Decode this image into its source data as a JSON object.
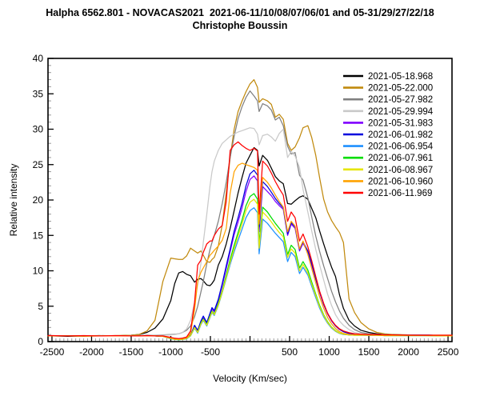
{
  "header": {
    "title": "Halpha 6562.801 - NOVACAS2021  2021-06-11/10/08/07/06/01 and 05-31/29/27/22/18",
    "subtitle": "Christophe Boussin"
  },
  "chart_data": {
    "type": "line",
    "title": "Halpha 6562.801 - NOVACAS2021 2021-06-11/10/08/07/06/01 and 05-31/29/27/22/18",
    "xlabel": "Velocity (Km/sec)",
    "ylabel": "Relative intensity",
    "xlim": [
      -2550,
      2550
    ],
    "ylim": [
      0,
      40
    ],
    "x_major_ticks": [
      -2500,
      -2000,
      -1500,
      -1000,
      -500,
      0,
      500,
      1000,
      1500,
      2000,
      2500
    ],
    "x_unlabeled_ticks": [
      0
    ],
    "x_minor_step": 50,
    "y_major_ticks": [
      0,
      5,
      10,
      15,
      20,
      25,
      30,
      35,
      40
    ],
    "y_minor_step": 1,
    "grid": false,
    "legend_position": "top-right",
    "background_color": "#ffffff",
    "axis_color": "#000000",
    "minor_tick_color": "#9b9b9b",
    "velocities": [
      -2500,
      -2300,
      -2100,
      -1900,
      -1700,
      -1500,
      -1400,
      -1300,
      -1200,
      -1100,
      -1000,
      -950,
      -900,
      -850,
      -800,
      -750,
      -700,
      -660,
      -620,
      -590,
      -545,
      -505,
      -480,
      -450,
      -400,
      -350,
      -300,
      -250,
      -200,
      -150,
      -100,
      -50,
      0,
      50,
      95,
      115,
      160,
      220,
      270,
      320,
      370,
      420,
      475,
      520,
      570,
      625,
      670,
      730,
      780,
      830,
      880,
      930,
      980,
      1030,
      1080,
      1130,
      1180,
      1250,
      1320,
      1400,
      1500,
      1600,
      1700,
      1800,
      2000,
      2250,
      2500
    ],
    "series": [
      {
        "name": "2021-05-18.968",
        "color": "#000000",
        "values": [
          0.8,
          0.75,
          0.8,
          0.85,
          0.8,
          0.9,
          1.0,
          1.3,
          1.9,
          3.2,
          5.8,
          8.2,
          9.7,
          9.9,
          9.5,
          9.3,
          8.4,
          8.8,
          8.9,
          8.6,
          8.0,
          7.9,
          8.2,
          8.7,
          10.8,
          12.0,
          13.8,
          16.0,
          18.5,
          21.0,
          23.2,
          25.2,
          26.3,
          27.4,
          27.0,
          24.8,
          26.3,
          25.6,
          24.5,
          23.3,
          22.7,
          22.3,
          19.5,
          19.4,
          19.9,
          20.4,
          20.6,
          20.1,
          18.8,
          17.5,
          15.6,
          13.8,
          12.1,
          10.5,
          9.2,
          6.6,
          4.7,
          3.0,
          2.2,
          1.6,
          1.3,
          1.1,
          1.0,
          1.0,
          0.9,
          0.9,
          0.85
        ]
      },
      {
        "name": "2021-05-22.000",
        "color": "#c18a0e",
        "values": [
          0.8,
          0.8,
          0.75,
          0.8,
          0.85,
          0.9,
          1.0,
          1.5,
          3.0,
          8.5,
          11.8,
          11.7,
          11.6,
          11.6,
          12.1,
          13.2,
          12.8,
          12.5,
          12.8,
          12.2,
          11.3,
          11.2,
          11.6,
          11.9,
          13.5,
          16.5,
          21.0,
          26.0,
          30.0,
          32.5,
          34.0,
          35.3,
          36.4,
          37.0,
          35.9,
          33.8,
          34.3,
          34.0,
          33.5,
          31.7,
          32.1,
          31.4,
          28.0,
          27.0,
          27.5,
          28.8,
          30.2,
          30.5,
          28.8,
          26.3,
          23.1,
          20.1,
          18.3,
          17.1,
          16.2,
          15.4,
          14.0,
          6.0,
          4.1,
          2.7,
          1.8,
          1.3,
          1.1,
          1.0,
          0.95,
          0.9,
          0.9
        ]
      },
      {
        "name": "2021-05-27.982",
        "color": "#808080",
        "values": [
          0.8,
          0.8,
          0.8,
          0.8,
          0.8,
          0.85,
          0.85,
          0.9,
          0.9,
          0.95,
          1.0,
          1.05,
          1.1,
          1.3,
          1.6,
          2.2,
          3.5,
          5.0,
          7.0,
          8.5,
          11.0,
          13.0,
          14.0,
          15.0,
          17.0,
          19.5,
          22.5,
          26.0,
          29.0,
          31.5,
          33.2,
          34.5,
          35.4,
          34.7,
          34.0,
          32.5,
          33.6,
          33.3,
          32.7,
          31.3,
          31.7,
          30.5,
          27.6,
          26.5,
          26.7,
          23.5,
          22.8,
          20.3,
          17.6,
          14.9,
          12.7,
          10.7,
          8.9,
          7.1,
          5.6,
          4.3,
          3.3,
          2.3,
          1.7,
          1.3,
          1.1,
          1.0,
          1.0,
          0.95,
          0.9,
          0.9,
          0.85
        ]
      },
      {
        "name": "2021-05-29.994",
        "color": "#c9c9c9",
        "values": [
          0.85,
          0.8,
          0.8,
          0.8,
          0.8,
          0.85,
          0.85,
          0.85,
          0.9,
          0.9,
          0.95,
          1.0,
          1.1,
          1.3,
          1.8,
          3.0,
          5.5,
          8.0,
          11.0,
          14.0,
          18.0,
          22.0,
          24.0,
          25.5,
          27.0,
          28.0,
          28.5,
          29.0,
          29.3,
          29.6,
          29.8,
          30.0,
          30.2,
          30.1,
          29.3,
          27.8,
          29.1,
          29.3,
          28.9,
          28.3,
          29.4,
          30.0,
          26.0,
          26.9,
          26.2,
          24.6,
          21.5,
          18.3,
          15.6,
          13.0,
          10.8,
          8.7,
          6.7,
          5.1,
          3.8,
          2.9,
          2.3,
          1.7,
          1.3,
          1.1,
          1.0,
          1.0,
          0.95,
          0.9,
          0.9,
          0.9,
          0.85
        ]
      },
      {
        "name": "2021-05-31.983",
        "color": "#8000ff",
        "values": [
          0.8,
          0.8,
          0.8,
          0.8,
          0.8,
          0.8,
          0.8,
          0.8,
          0.8,
          0.75,
          0.55,
          0.45,
          0.4,
          0.45,
          0.55,
          0.9,
          2.2,
          1.5,
          2.8,
          3.4,
          2.6,
          3.8,
          4.6,
          4.2,
          5.8,
          7.9,
          10.3,
          12.7,
          15.1,
          16.9,
          18.9,
          21.2,
          22.9,
          23.4,
          22.7,
          15.5,
          21.9,
          21.2,
          20.6,
          19.8,
          19.2,
          18.7,
          15.0,
          16.6,
          16.0,
          12.8,
          13.9,
          12.6,
          10.8,
          8.8,
          6.9,
          5.2,
          3.9,
          2.9,
          2.2,
          1.7,
          1.4,
          1.15,
          1.05,
          1.0,
          1.0,
          0.95,
          0.9,
          0.9,
          0.9,
          0.9,
          0.85
        ]
      },
      {
        "name": "2021-06-01.982",
        "color": "#0000dd",
        "values": [
          0.8,
          0.8,
          0.8,
          0.8,
          0.8,
          0.8,
          0.8,
          0.8,
          0.8,
          0.75,
          0.5,
          0.4,
          0.35,
          0.4,
          0.5,
          0.9,
          2.3,
          1.6,
          2.9,
          3.6,
          2.7,
          4.0,
          4.8,
          4.4,
          6.0,
          8.2,
          10.7,
          13.1,
          15.6,
          17.5,
          19.6,
          22.0,
          23.7,
          24.2,
          23.5,
          16.2,
          22.6,
          21.9,
          21.1,
          20.2,
          19.5,
          18.9,
          15.2,
          16.8,
          16.2,
          13.0,
          14.1,
          12.8,
          11.0,
          8.9,
          7.0,
          5.3,
          4.0,
          3.0,
          2.25,
          1.75,
          1.4,
          1.15,
          1.05,
          1.0,
          1.0,
          0.95,
          0.9,
          0.9,
          0.9,
          0.9,
          0.85
        ]
      },
      {
        "name": "2021-06-06.954",
        "color": "#1e90ff",
        "values": [
          0.8,
          0.8,
          0.8,
          0.8,
          0.8,
          0.8,
          0.8,
          0.8,
          0.8,
          0.75,
          0.4,
          0.3,
          0.25,
          0.3,
          0.4,
          0.8,
          1.9,
          1.2,
          2.4,
          3.0,
          2.2,
          3.4,
          4.1,
          3.7,
          5.1,
          6.9,
          8.9,
          10.9,
          12.7,
          14.3,
          15.9,
          17.5,
          18.5,
          18.9,
          18.2,
          12.4,
          17.3,
          16.7,
          16.0,
          15.3,
          14.7,
          14.1,
          11.3,
          12.6,
          12.0,
          9.6,
          10.5,
          9.4,
          7.8,
          6.2,
          4.7,
          3.5,
          2.6,
          1.9,
          1.45,
          1.15,
          1.0,
          0.95,
          0.9,
          0.9,
          0.9,
          0.9,
          0.85,
          0.85,
          0.85,
          0.85,
          0.8
        ]
      },
      {
        "name": "2021-06-07.961",
        "color": "#00dd00",
        "values": [
          0.8,
          0.8,
          0.8,
          0.8,
          0.8,
          0.8,
          0.8,
          0.8,
          0.8,
          0.75,
          0.45,
          0.32,
          0.27,
          0.32,
          0.45,
          0.85,
          2.0,
          1.3,
          2.6,
          3.2,
          2.4,
          3.6,
          4.3,
          3.9,
          5.4,
          7.2,
          9.4,
          11.6,
          13.6,
          15.4,
          17.2,
          19.2,
          20.5,
          20.9,
          20.1,
          13.8,
          19.0,
          18.3,
          17.5,
          16.7,
          16.0,
          15.3,
          12.3,
          13.6,
          13.0,
          10.4,
          11.3,
          10.1,
          8.4,
          6.7,
          5.1,
          3.8,
          2.8,
          2.05,
          1.55,
          1.2,
          1.05,
          0.95,
          0.9,
          0.9,
          0.9,
          0.9,
          0.85,
          0.85,
          0.85,
          0.85,
          0.8
        ]
      },
      {
        "name": "2021-06-08.967",
        "color": "#e6e600",
        "values": [
          0.8,
          0.8,
          0.8,
          0.8,
          0.8,
          0.8,
          0.8,
          0.8,
          0.8,
          0.75,
          0.45,
          0.33,
          0.28,
          0.33,
          0.45,
          0.85,
          2.0,
          1.3,
          2.5,
          3.1,
          2.3,
          3.5,
          4.2,
          3.8,
          5.2,
          7.0,
          9.1,
          11.2,
          13.1,
          14.9,
          16.6,
          18.5,
          19.7,
          20.1,
          19.4,
          13.2,
          18.3,
          17.6,
          16.9,
          16.1,
          15.4,
          14.8,
          11.9,
          13.1,
          12.5,
          10.0,
          10.9,
          9.7,
          8.1,
          6.5,
          4.9,
          3.7,
          2.7,
          2.0,
          1.5,
          1.2,
          1.05,
          0.95,
          0.9,
          0.9,
          0.9,
          0.9,
          0.85,
          0.85,
          0.85,
          0.85,
          0.8
        ]
      },
      {
        "name": "2021-06-10.960",
        "color": "#ffa200",
        "values": [
          0.8,
          0.8,
          0.8,
          0.8,
          0.8,
          0.8,
          0.8,
          0.8,
          0.8,
          0.75,
          0.5,
          0.38,
          0.33,
          0.38,
          0.5,
          1.2,
          4.5,
          8.5,
          9.8,
          10.4,
          11.3,
          12.2,
          12.5,
          12.9,
          13.5,
          14.3,
          16.0,
          21.0,
          24.0,
          24.9,
          25.2,
          25.0,
          24.8,
          24.6,
          24.2,
          16.6,
          23.2,
          22.5,
          21.7,
          20.7,
          19.8,
          19.0,
          15.5,
          17.0,
          16.3,
          13.1,
          14.2,
          12.3,
          10.3,
          8.3,
          6.3,
          4.7,
          3.4,
          2.5,
          1.85,
          1.4,
          1.15,
          1.0,
          0.95,
          0.95,
          0.9,
          0.9,
          0.9,
          0.9,
          0.9,
          0.85,
          0.85
        ]
      },
      {
        "name": "2021-06-11.969",
        "color": "#ff0000",
        "values": [
          0.85,
          0.8,
          0.85,
          0.8,
          0.85,
          0.8,
          0.8,
          0.85,
          0.8,
          0.8,
          0.6,
          0.48,
          0.42,
          0.5,
          0.65,
          1.5,
          5.5,
          10.8,
          11.5,
          12.6,
          13.8,
          14.2,
          14.2,
          15.0,
          15.9,
          16.4,
          19.8,
          27.0,
          27.8,
          28.2,
          27.7,
          27.3,
          27.0,
          27.3,
          26.9,
          18.0,
          25.5,
          24.8,
          23.8,
          22.6,
          21.6,
          20.7,
          17.0,
          18.3,
          17.5,
          14.2,
          15.2,
          13.4,
          11.4,
          9.2,
          7.1,
          5.4,
          4.0,
          3.0,
          2.3,
          1.8,
          1.5,
          1.25,
          1.1,
          1.05,
          1.0,
          1.0,
          0.95,
          0.95,
          0.9,
          0.9,
          0.9
        ]
      }
    ]
  }
}
